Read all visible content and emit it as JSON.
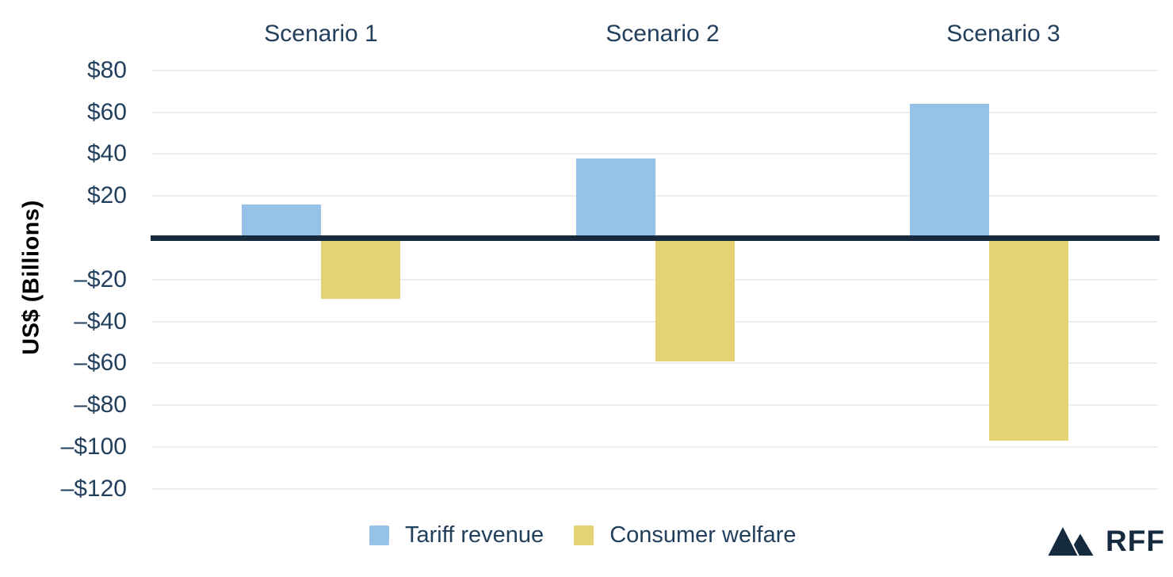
{
  "chart_data": {
    "type": "bar",
    "title": "",
    "categories": [
      "Scenario 1",
      "Scenario 2",
      "Scenario 3"
    ],
    "series": [
      {
        "name": "Tariff revenue",
        "color": "#96c2e7",
        "values": [
          16,
          38,
          64
        ]
      },
      {
        "name": "Consumer welfare",
        "color": "#e5d373",
        "values": [
          -29,
          -59,
          -97
        ]
      }
    ],
    "xlabel": "",
    "ylabel": "US$ (Billions)",
    "ylim": [
      -130,
      90
    ],
    "yticks": [
      {
        "value": 80,
        "label": "$80"
      },
      {
        "value": 60,
        "label": "$60"
      },
      {
        "value": 40,
        "label": "$40"
      },
      {
        "value": 20,
        "label": "$20"
      },
      {
        "value": -20,
        "label": "–$20"
      },
      {
        "value": -40,
        "label": "–$40"
      },
      {
        "value": -60,
        "label": "–$60"
      },
      {
        "value": -80,
        "label": "–$80"
      },
      {
        "value": -100,
        "label": "–$100"
      },
      {
        "value": -120,
        "label": "–$120"
      }
    ],
    "grid": true,
    "zero_line": true,
    "legend_position": "bottom",
    "units": "US$ billions"
  },
  "legend": {
    "items": [
      "Tariff revenue",
      "Consumer welfare"
    ]
  },
  "logo": {
    "text": "RFF"
  },
  "colors": {
    "tariff_revenue": "#96c2e7",
    "consumer_welfare": "#e5d373",
    "axis_line": "#16293d",
    "text": "#223f5c",
    "gridline": "#eeeef0",
    "background": "#ffffff",
    "logo": "#152a3e"
  }
}
